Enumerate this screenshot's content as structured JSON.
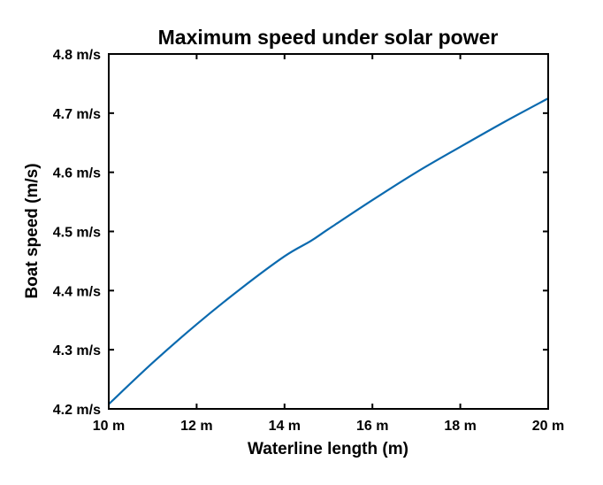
{
  "chart_data": {
    "type": "line",
    "title": "Maximum speed under solar power",
    "xlabel": "Waterline length (m)",
    "ylabel": "Boat speed (m/s)",
    "xlim": [
      10,
      20
    ],
    "ylim": [
      4.2,
      4.8
    ],
    "x_ticks": [
      {
        "value": 10,
        "label": "10 m"
      },
      {
        "value": 12,
        "label": "12 m"
      },
      {
        "value": 14,
        "label": "14 m"
      },
      {
        "value": 16,
        "label": "16 m"
      },
      {
        "value": 18,
        "label": "18 m"
      },
      {
        "value": 20,
        "label": "20 m"
      }
    ],
    "y_ticks": [
      {
        "value": 4.2,
        "label": "4.2 m/s"
      },
      {
        "value": 4.3,
        "label": "4.3 m/s"
      },
      {
        "value": 4.4,
        "label": "4.4 m/s"
      },
      {
        "value": 4.5,
        "label": "4.5 m/s"
      },
      {
        "value": 4.6,
        "label": "4.6 m/s"
      },
      {
        "value": 4.7,
        "label": "4.7 m/s"
      },
      {
        "value": 4.8,
        "label": "4.8 m/s"
      }
    ],
    "grid": false,
    "series": [
      {
        "name": "Boat speed",
        "color": "#0b6aaf",
        "x": [
          10,
          11,
          12,
          13,
          14,
          14.6,
          15,
          16,
          17,
          18,
          19,
          20
        ],
        "y": [
          4.208,
          4.278,
          4.343,
          4.403,
          4.458,
          4.484,
          4.504,
          4.553,
          4.6,
          4.643,
          4.685,
          4.725
        ]
      }
    ]
  }
}
